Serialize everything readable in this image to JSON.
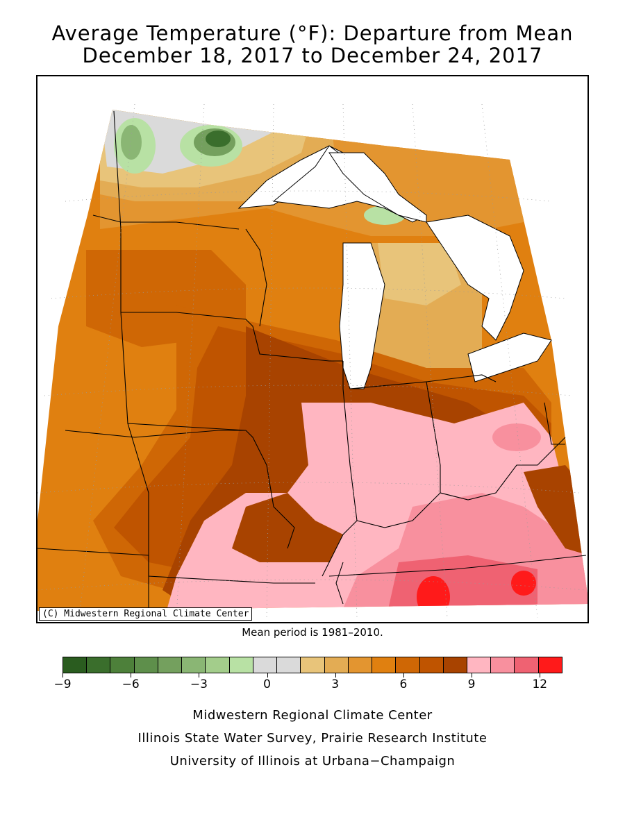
{
  "title": {
    "line1": "Average Temperature (°F): Departure from Mean",
    "line2": "December 18, 2017 to December 24, 2017"
  },
  "map": {
    "copyright": "(C) Midwestern Regional Climate Center",
    "mean_period": "Mean period is 1981–2010.",
    "lake_color": "#ffffff",
    "border_color": "#000000"
  },
  "legend": {
    "colors": [
      "#2a5c1f",
      "#3a6e2c",
      "#4d803a",
      "#5e8f4b",
      "#74a05e",
      "#8ab674",
      "#a3cd8b",
      "#b8e1a4",
      "#dadada",
      "#dadada",
      "#e8c47a",
      "#e3ac54",
      "#e39530",
      "#e08010",
      "#cf6705",
      "#bf5400",
      "#a84300",
      "#ffb6c1",
      "#f8909e",
      "#ef6272",
      "#ff1a1a"
    ],
    "ticks": [
      {
        "label": "−9",
        "value": -9
      },
      {
        "label": "−6",
        "value": -6
      },
      {
        "label": "−3",
        "value": -3
      },
      {
        "label": "0",
        "value": 0
      },
      {
        "label": "3",
        "value": 3
      },
      {
        "label": "6",
        "value": 6
      },
      {
        "label": "9",
        "value": 9
      },
      {
        "label": "12",
        "value": 12
      }
    ],
    "min": -9,
    "max": 13
  },
  "footer": {
    "line1": "Midwestern Regional Climate Center",
    "line2": "Illinois State Water Survey, Prairie Research Institute",
    "line3": "University of Illinois at Urbana−Champaign"
  }
}
